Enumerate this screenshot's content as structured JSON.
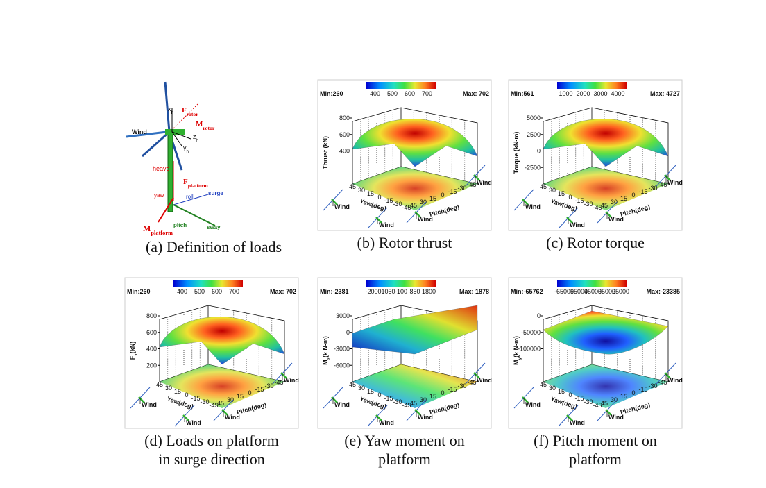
{
  "figure": {
    "panel_a": {
      "wind": "Wind",
      "x_h": [
        "x",
        "h"
      ],
      "z_h": [
        "z",
        "h"
      ],
      "y_h": [
        "y",
        "h"
      ],
      "f_rotor": [
        "F",
        "rotor"
      ],
      "m_rotor": [
        "M",
        "rotor"
      ],
      "heave": "heave",
      "f_platform": [
        "F",
        "platform"
      ],
      "yaw": "yaw",
      "roll": "roll",
      "surge": "surge",
      "sway": "sway",
      "pitch": "pitch",
      "m_platform": [
        "M",
        "platform"
      ],
      "caption": [
        "(a) Definition of loads"
      ]
    },
    "panels": [
      {
        "min": "Min:260",
        "max": "Max: 702",
        "colorbar_ticks": [
          "400",
          "500",
          "600",
          "700"
        ],
        "z_label": [
          "Thrust (kN)"
        ],
        "z_ticks": [
          "800",
          "600",
          "400"
        ],
        "yaw_ticks": [
          "45",
          "30",
          "15",
          "0",
          "-15",
          "-30",
          "-45"
        ],
        "pitch_ticks": [
          "45",
          "30",
          "15",
          "0",
          "-15",
          "-30",
          "-45"
        ],
        "yaw_label": "Yaw(deg)",
        "pitch_label": "Pitch(deg)",
        "wind_labels": [
          "Wind",
          "Wind",
          "Wind",
          "Wind"
        ],
        "caption": [
          "(b) Rotor thrust"
        ]
      },
      {
        "min": "Min:561",
        "max": "Max: 4727",
        "colorbar_ticks": [
          "1000",
          "2000",
          "3000",
          "4000"
        ],
        "z_label": [
          "Torque (kN-m)"
        ],
        "z_ticks": [
          "5000",
          "2500",
          "0",
          "-2500"
        ],
        "yaw_ticks": [
          "45",
          "30",
          "15",
          "0",
          "-15",
          "-30",
          "-45"
        ],
        "pitch_ticks": [
          "45",
          "30",
          "15",
          "0",
          "-15",
          "-30",
          "-45"
        ],
        "yaw_label": "Yaw(deg)",
        "pitch_label": "Pitch(deg)",
        "wind_labels": [
          "Wind",
          "Wind",
          "Wind",
          "Wind"
        ],
        "caption": [
          "(c) Rotor torque"
        ]
      },
      {
        "min": "Min:260",
        "max": "Max: 702",
        "colorbar_ticks": [
          "400",
          "500",
          "600",
          "700"
        ],
        "z_label": [
          "F",
          "x",
          "(kN)"
        ],
        "z_ticks": [
          "800",
          "600",
          "400",
          "200"
        ],
        "yaw_ticks": [
          "45",
          "30",
          "15",
          "0",
          "-15",
          "-30",
          "-45"
        ],
        "pitch_ticks": [
          "45",
          "30",
          "15",
          "0",
          "-15",
          "-30",
          "-45"
        ],
        "yaw_label": "Yaw(deg)",
        "pitch_label": "Pitch(deg)",
        "wind_labels": [
          "Wind",
          "Wind",
          "Wind",
          "Wind"
        ],
        "caption": [
          "(d) Loads on platform",
          "in surge direction"
        ]
      },
      {
        "min": "Min:-2381",
        "max": "Max: 1878",
        "colorbar_ticks": [
          "-2000",
          "-1050",
          "-100",
          "850",
          "1800"
        ],
        "z_label": [
          "M",
          "z",
          "(k N-m)"
        ],
        "z_ticks": [
          "3000",
          "0",
          "-3000",
          "-6000"
        ],
        "yaw_ticks": [
          "45",
          "30",
          "15",
          "0",
          "-15",
          "-30",
          "-45"
        ],
        "pitch_ticks": [
          "45",
          "30",
          "15",
          "0",
          "-15",
          "-30",
          "-45"
        ],
        "yaw_label": "Yaw(deg)",
        "pitch_label": "Pitch(deg)",
        "wind_labels": [
          "Wind",
          "Wind",
          "Wind",
          "Wind"
        ],
        "caption": [
          "(e) Yaw moment on",
          "platform"
        ]
      },
      {
        "min": "Min:-65762",
        "max": "Max:-23385",
        "colorbar_ticks": [
          "-65000",
          "-55000",
          "-45000",
          "-35000",
          "-25000"
        ],
        "z_label": [
          "M",
          "y",
          "(k N-m)"
        ],
        "z_ticks": [
          "0",
          "-50000",
          "-100000"
        ],
        "yaw_ticks": [
          "45",
          "30",
          "15",
          "0",
          "-15",
          "-30",
          "-45"
        ],
        "pitch_ticks": [
          "45",
          "30",
          "15",
          "0",
          "-15",
          "-30",
          "-45"
        ],
        "yaw_label": "Yaw(deg)",
        "pitch_label": "Pitch(deg)",
        "wind_labels": [
          "Wind",
          "Wind",
          "Wind",
          "Wind"
        ],
        "caption": [
          "(f) Pitch moment on",
          "platform"
        ]
      }
    ]
  }
}
